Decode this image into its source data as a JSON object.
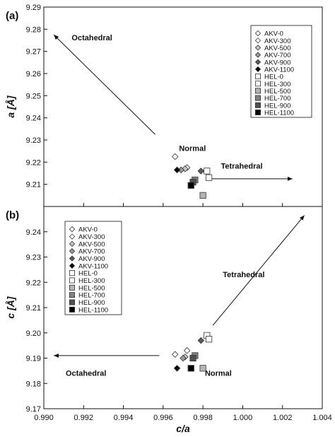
{
  "figure": {
    "xlabel": "c/a",
    "x_ticks": [
      "0.990",
      "0.992",
      "0.994",
      "0.996",
      "0.998",
      "1.000",
      "1.002",
      "1.004"
    ]
  },
  "chart_data": [
    {
      "type": "scatter",
      "panel_label": "(a)",
      "ylabel": "a [Å]",
      "xlim": [
        0.99,
        1.004
      ],
      "ylim": [
        9.2,
        9.29
      ],
      "y_ticks": [
        "9.21",
        "9.22",
        "9.23",
        "9.24",
        "9.25",
        "9.26",
        "9.27",
        "9.28",
        "9.29"
      ],
      "legend_position": "top-right",
      "series": [
        {
          "name": "AKV-0",
          "marker": "diamond",
          "fill": "#ffffff",
          "x": 0.9966,
          "y": 9.2225
        },
        {
          "name": "AKV-300",
          "marker": "diamond",
          "fill": "#ffffff",
          "x": 0.9972,
          "y": 9.2175
        },
        {
          "name": "AKV-500",
          "marker": "diamond",
          "fill": "#c8c8c8",
          "x": 0.9971,
          "y": 9.217
        },
        {
          "name": "AKV-700",
          "marker": "diamond",
          "fill": "#9a9a9a",
          "x": 0.9969,
          "y": 9.2165
        },
        {
          "name": "AKV-900",
          "marker": "diamond",
          "fill": "#5a5a5a",
          "x": 0.9979,
          "y": 9.216
        },
        {
          "name": "AKV-1100",
          "marker": "diamond",
          "fill": "#000000",
          "x": 0.9967,
          "y": 9.2165
        },
        {
          "name": "HEL-0",
          "marker": "square",
          "fill": "#ffffff",
          "x": 0.9982,
          "y": 9.216
        },
        {
          "name": "HEL-300",
          "marker": "square",
          "fill": "#ffffff",
          "x": 0.9983,
          "y": 9.213
        },
        {
          "name": "HEL-500",
          "marker": "square",
          "fill": "#b4b4b4",
          "x": 0.998,
          "y": 9.205
        },
        {
          "name": "HEL-700",
          "marker": "square",
          "fill": "#828282",
          "x": 0.9976,
          "y": 9.212
        },
        {
          "name": "HEL-900",
          "marker": "square",
          "fill": "#505050",
          "x": 0.9975,
          "y": 9.211
        },
        {
          "name": "HEL-1100",
          "marker": "square",
          "fill": "#000000",
          "x": 0.9974,
          "y": 9.2095
        }
      ],
      "annotations": [
        {
          "text": "Octahedral",
          "x": 0.9914,
          "y": 9.275
        },
        {
          "text": "Normal",
          "x": 0.9968,
          "y": 9.225
        },
        {
          "text": "Tetrahedral",
          "x": 0.9989,
          "y": 9.217
        }
      ],
      "arrows": [
        {
          "from": [
            0.9956,
            9.2325
          ],
          "to": [
            0.9905,
            9.2775
          ]
        },
        {
          "from": [
            0.9984,
            9.2125
          ],
          "to": [
            1.0025,
            9.2125
          ]
        }
      ]
    },
    {
      "type": "scatter",
      "panel_label": "(b)",
      "ylabel": "c [Å]",
      "xlim": [
        0.99,
        1.004
      ],
      "ylim": [
        9.17,
        9.25
      ],
      "y_ticks": [
        "9.17",
        "9.18",
        "9.19",
        "9.20",
        "9.21",
        "9.22",
        "9.23",
        "9.24"
      ],
      "legend_position": "top-left",
      "series": [
        {
          "name": "AKV-0",
          "marker": "diamond",
          "fill": "#ffffff",
          "x": 0.9966,
          "y": 9.1915
        },
        {
          "name": "AKV-300",
          "marker": "diamond",
          "fill": "#ffffff",
          "x": 0.9972,
          "y": 9.193
        },
        {
          "name": "AKV-500",
          "marker": "diamond",
          "fill": "#c8c8c8",
          "x": 0.9971,
          "y": 9.1905
        },
        {
          "name": "AKV-700",
          "marker": "diamond",
          "fill": "#9a9a9a",
          "x": 0.997,
          "y": 9.19
        },
        {
          "name": "AKV-900",
          "marker": "diamond",
          "fill": "#5a5a5a",
          "x": 0.9979,
          "y": 9.197
        },
        {
          "name": "AKV-1100",
          "marker": "diamond",
          "fill": "#000000",
          "x": 0.9967,
          "y": 9.186
        },
        {
          "name": "HEL-0",
          "marker": "square",
          "fill": "#ffffff",
          "x": 0.9982,
          "y": 9.199
        },
        {
          "name": "HEL-300",
          "marker": "square",
          "fill": "#ffffff",
          "x": 0.9983,
          "y": 9.1975
        },
        {
          "name": "HEL-500",
          "marker": "square",
          "fill": "#b4b4b4",
          "x": 0.998,
          "y": 9.186
        },
        {
          "name": "HEL-700",
          "marker": "square",
          "fill": "#828282",
          "x": 0.9976,
          "y": 9.191
        },
        {
          "name": "HEL-900",
          "marker": "square",
          "fill": "#505050",
          "x": 0.9975,
          "y": 9.19
        },
        {
          "name": "HEL-1100",
          "marker": "square",
          "fill": "#000000",
          "x": 0.9974,
          "y": 9.186
        }
      ],
      "annotations": [
        {
          "text": "Octahedral",
          "x": 0.9911,
          "y": 9.183
        },
        {
          "text": "Normal",
          "x": 0.9981,
          "y": 9.183
        },
        {
          "text": "Tetrahedral",
          "x": 0.999,
          "y": 9.222
        }
      ],
      "arrows": [
        {
          "from": [
            0.9958,
            9.191
          ],
          "to": [
            0.9905,
            9.191
          ]
        },
        {
          "from": [
            0.9985,
            9.203
          ],
          "to": [
            1.0031,
            9.2465
          ]
        }
      ]
    }
  ]
}
